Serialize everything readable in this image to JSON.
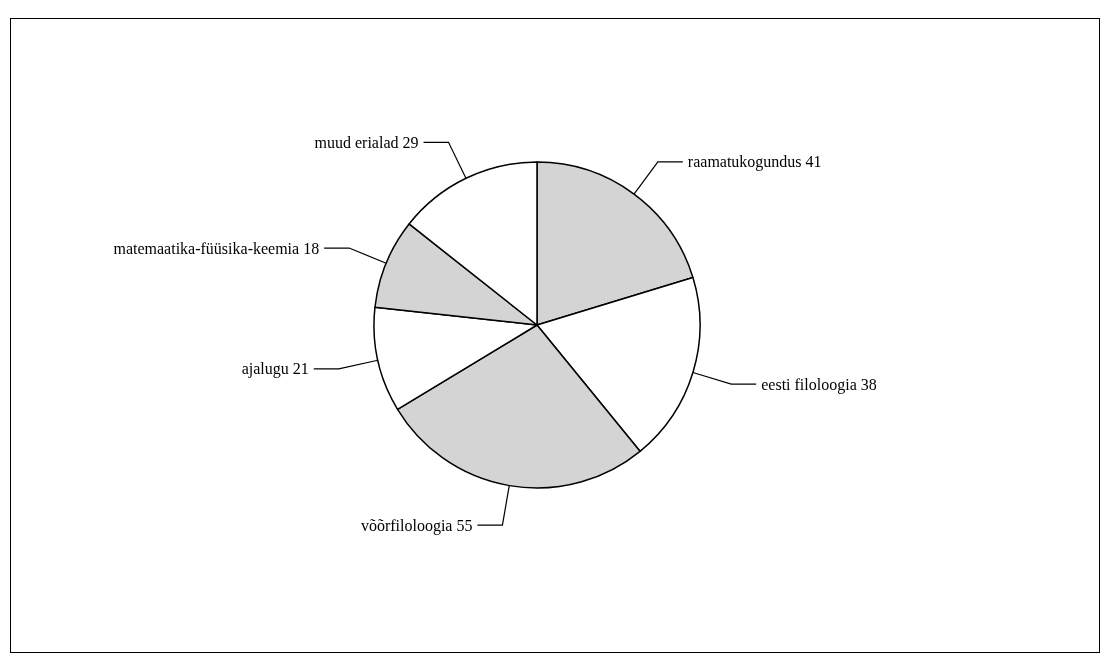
{
  "chart_data": {
    "type": "pie",
    "categories": [
      "raamatukogundus",
      "eesti filoloogia",
      "võõrfiloloogia",
      "ajalugu",
      "matemaatika-füüsika-keemia",
      "muud erialad"
    ],
    "values": [
      41,
      38,
      55,
      21,
      18,
      29
    ],
    "colors": [
      "#d4d4d4",
      "#ffffff",
      "#d4d4d4",
      "#ffffff",
      "#d4d4d4",
      "#ffffff"
    ],
    "data_labels": true,
    "legend": false
  }
}
